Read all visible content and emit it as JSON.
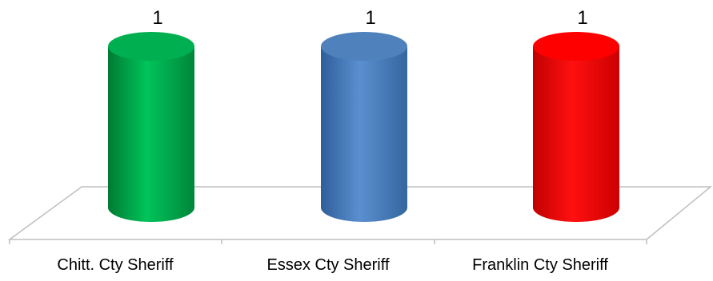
{
  "chart_data": {
    "type": "bar",
    "style": "3d-cylinder",
    "categories": [
      "Chitt. Cty Sheriff",
      "Essex Cty Sheriff",
      "Franklin Cty Sheriff"
    ],
    "values": [
      1,
      1,
      1
    ],
    "data_labels": [
      "1",
      "1",
      "1"
    ],
    "colors": [
      "#00b050",
      "#4f81bd",
      "#ff0000"
    ],
    "title": "",
    "xlabel": "",
    "ylabel": "",
    "ylim": [
      0,
      1
    ],
    "grid": false,
    "legend": "none"
  }
}
